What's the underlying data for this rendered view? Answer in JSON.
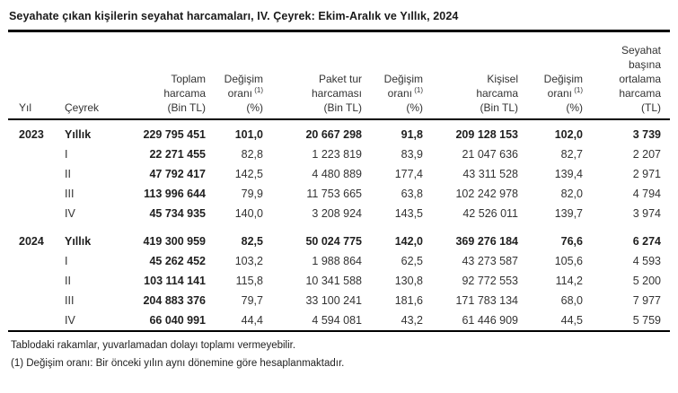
{
  "title": "Seyahate çıkan kişilerin seyahat harcamaları, IV. Çeyrek: Ekim-Aralık ve Yıllık, 2024",
  "table": {
    "columns": [
      {
        "id": "yil",
        "lines": [
          "Yıl"
        ],
        "align": "left"
      },
      {
        "id": "ceyrek",
        "lines": [
          "Çeyrek"
        ],
        "align": "left"
      },
      {
        "id": "toplam-harcama",
        "lines": [
          "Toplam",
          "harcama",
          "(Bin TL)"
        ],
        "align": "right"
      },
      {
        "id": "degisim-orani-toplam",
        "lines": [
          "Değişim",
          "oranı^(1)",
          "(%)"
        ],
        "align": "right"
      },
      {
        "id": "paket-tur-harcamasi",
        "lines": [
          "Paket tur",
          "harcaması",
          "(Bin TL)"
        ],
        "align": "right"
      },
      {
        "id": "degisim-orani-paket",
        "lines": [
          "Değişim",
          "oranı^(1)",
          "(%)"
        ],
        "align": "right"
      },
      {
        "id": "kisisel-harcama",
        "lines": [
          "Kişisel",
          "harcama",
          "(Bin TL)"
        ],
        "align": "right"
      },
      {
        "id": "degisim-orani-kisisel",
        "lines": [
          "Değişim",
          "oranı^(1)",
          "(%)"
        ],
        "align": "right"
      },
      {
        "id": "seyahat-basina-ortalama-harcama",
        "lines": [
          "Seyahat",
          "başına",
          "ortalama",
          "harcama",
          "(TL)"
        ],
        "align": "right"
      }
    ],
    "sections": [
      {
        "year": "2023",
        "rows": [
          {
            "period": "Yıllık",
            "emphasis": true,
            "values": [
              "229 795 451",
              "101,0",
              "20 667 298",
              "91,8",
              "209 128 153",
              "102,0",
              "3 739"
            ]
          },
          {
            "period": "I",
            "emphasis": false,
            "values": [
              "22 271 455",
              "82,8",
              "1 223 819",
              "83,9",
              "21 047 636",
              "82,7",
              "2 207"
            ]
          },
          {
            "period": "II",
            "emphasis": false,
            "values": [
              "47 792 417",
              "142,5",
              "4 480 889",
              "177,4",
              "43 311 528",
              "139,4",
              "2 971"
            ]
          },
          {
            "period": "III",
            "emphasis": false,
            "values": [
              "113 996 644",
              "79,9",
              "11 753 665",
              "63,8",
              "102 242 978",
              "82,0",
              "4 794"
            ]
          },
          {
            "period": "IV",
            "emphasis": false,
            "values": [
              "45 734 935",
              "140,0",
              "3 208 924",
              "143,5",
              "42 526 011",
              "139,7",
              "3 974"
            ]
          }
        ]
      },
      {
        "year": "2024",
        "rows": [
          {
            "period": "Yıllık",
            "emphasis": true,
            "values": [
              "419 300 959",
              "82,5",
              "50 024 775",
              "142,0",
              "369 276 184",
              "76,6",
              "6 274"
            ]
          },
          {
            "period": "I",
            "emphasis": false,
            "values": [
              "45 262 452",
              "103,2",
              "1 988 864",
              "62,5",
              "43 273 587",
              "105,6",
              "4 593"
            ]
          },
          {
            "period": "II",
            "emphasis": false,
            "values": [
              "103 114 141",
              "115,8",
              "10 341 588",
              "130,8",
              "92 772 553",
              "114,2",
              "5 200"
            ]
          },
          {
            "period": "III",
            "emphasis": false,
            "values": [
              "204 883 376",
              "79,7",
              "33 100 241",
              "181,6",
              "171 783 134",
              "68,0",
              "7 977"
            ]
          },
          {
            "period": "IV",
            "emphasis": false,
            "values": [
              "66 040 991",
              "44,4",
              "4 594 081",
              "43,2",
              "61 446 909",
              "44,5",
              "5 759"
            ]
          }
        ]
      }
    ]
  },
  "footnotes": [
    "Tablodaki rakamlar, yuvarlamadan dolayı toplamı vermeyebilir.",
    "(1) Değişim oranı: Bir önceki yılın aynı dönemine göre hesaplanmaktadır."
  ],
  "colors": {
    "text": "#333333",
    "emphasis_text": "#1f1f1f",
    "rule": "#000000",
    "background": "#ffffff"
  }
}
